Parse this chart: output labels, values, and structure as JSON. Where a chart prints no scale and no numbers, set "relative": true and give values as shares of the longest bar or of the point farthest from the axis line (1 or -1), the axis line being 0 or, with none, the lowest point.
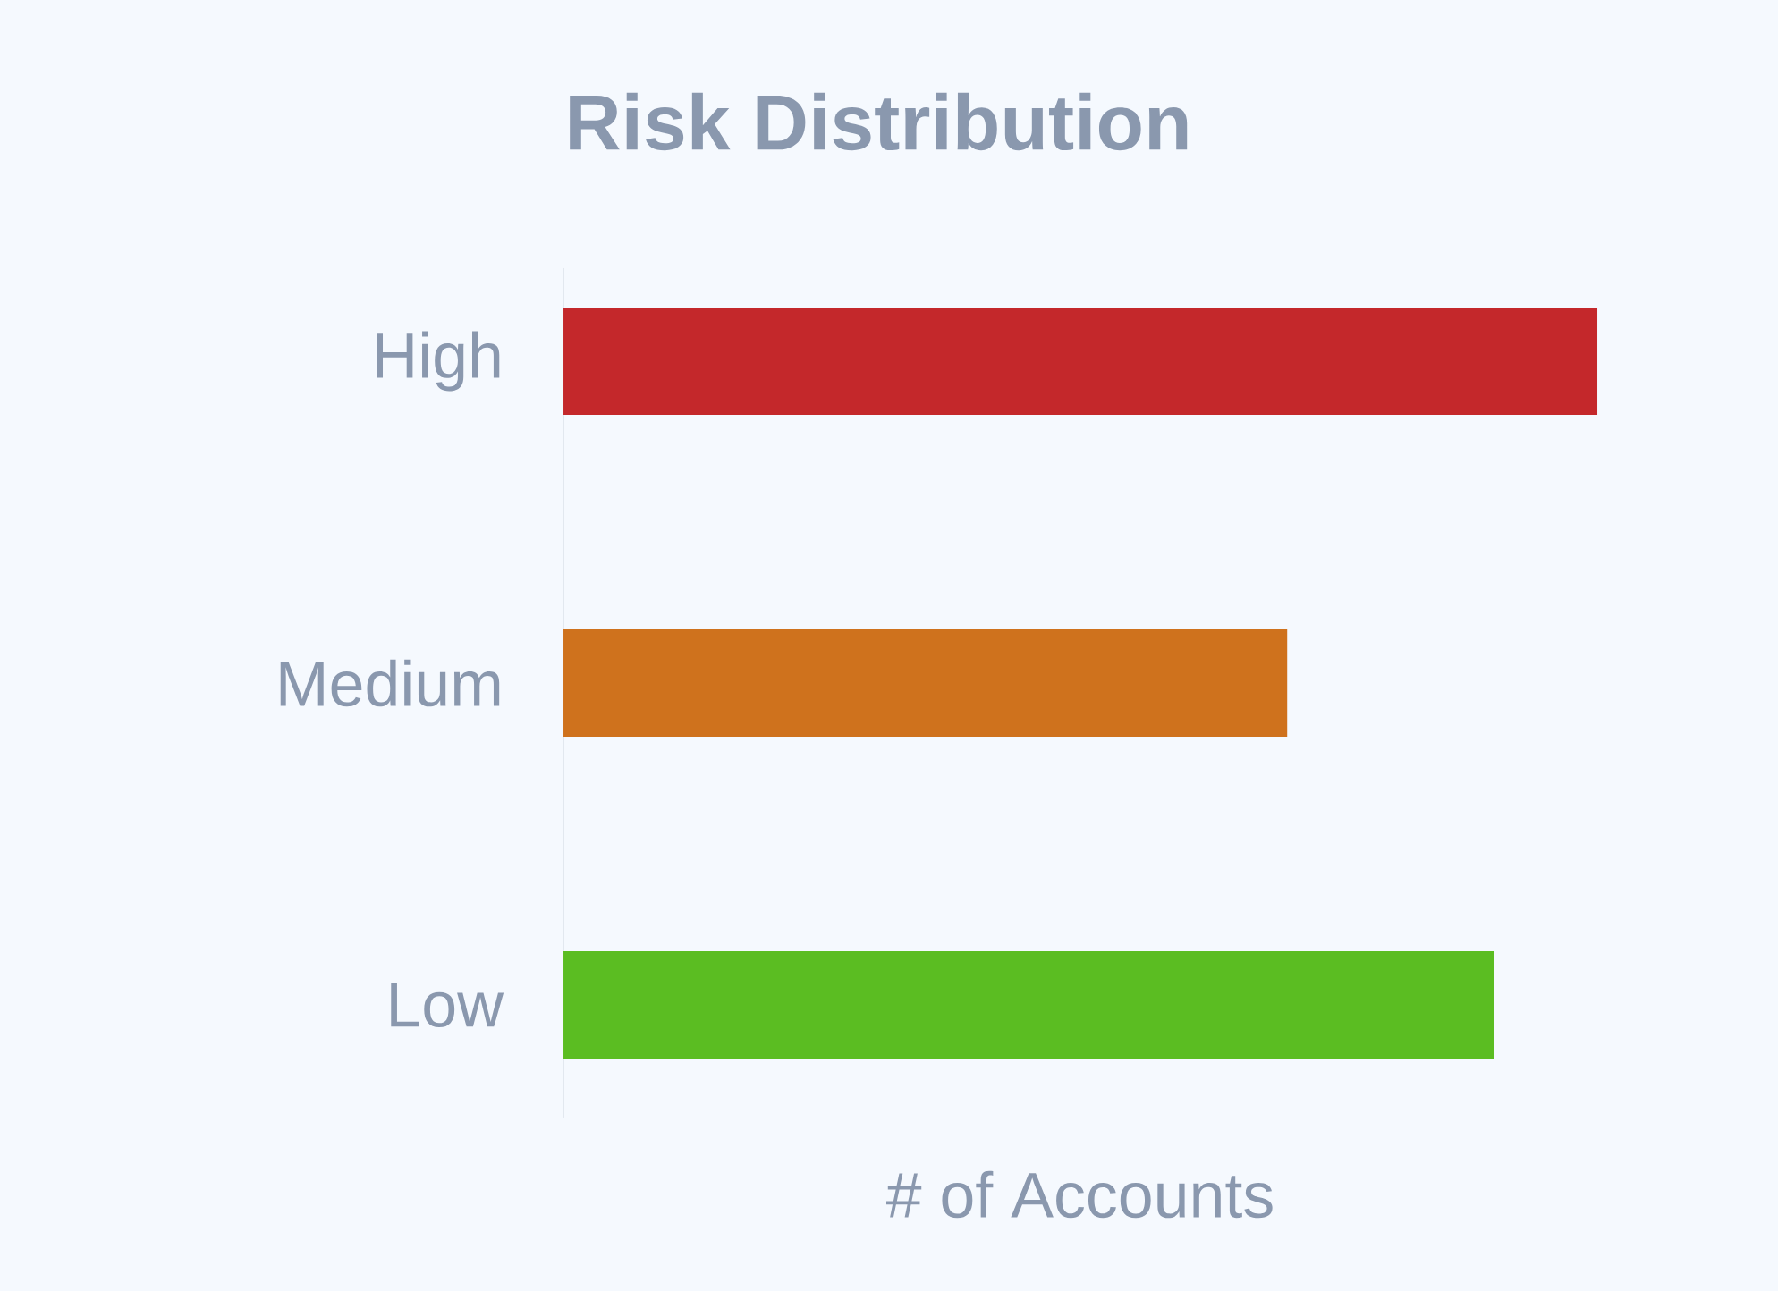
{
  "chart_data": {
    "type": "bar",
    "orientation": "horizontal",
    "relative": true,
    "title": "Risk Distribution",
    "xlabel": "# of Accounts",
    "categories": [
      "High",
      "Medium",
      "Low"
    ],
    "values": [
      1,
      0.7,
      0.9
    ],
    "colors": [
      "#c4282b",
      "#cf721d",
      "#5bbd22"
    ]
  }
}
